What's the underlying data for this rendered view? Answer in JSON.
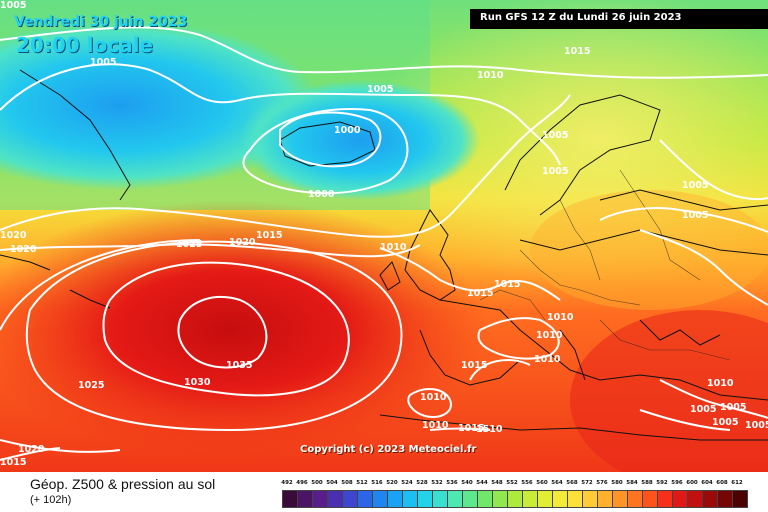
{
  "header": {
    "date": "Vendredi 30 juin 2023",
    "time": "20:00 locale",
    "run": "Run GFS 12 Z du Lundi 26 juin 2023"
  },
  "copyright": "Copyright (c) 2023 Meteociel.fr",
  "footer": {
    "title": "Géop. Z500 & pression au sol",
    "lead": "(+ 102h)"
  },
  "legend": {
    "ticks": [
      "492",
      "496",
      "500",
      "504",
      "508",
      "512",
      "516",
      "520",
      "524",
      "528",
      "532",
      "536",
      "540",
      "544",
      "548",
      "552",
      "556",
      "560",
      "564",
      "568",
      "572",
      "576",
      "580",
      "584",
      "588",
      "592",
      "596",
      "600",
      "604",
      "608",
      "612"
    ],
    "colors": [
      "#3a0a3a",
      "#4b1466",
      "#5a1e8c",
      "#4a2fb0",
      "#3c46d0",
      "#2b66e6",
      "#1f86f0",
      "#1aa3f5",
      "#1bbff2",
      "#24d3e8",
      "#39e0d0",
      "#4fe8b2",
      "#5ee88e",
      "#72e86a",
      "#8fe84e",
      "#aeea3e",
      "#c9ec36",
      "#e2ee36",
      "#f4ea38",
      "#fde03a",
      "#ffcb36",
      "#ffb12e",
      "#ff9426",
      "#ff7420",
      "#ff531c",
      "#f6301a",
      "#e01818",
      "#c21010",
      "#9a0a0a",
      "#740606",
      "#4a0202"
    ]
  },
  "map": {
    "isobar_labels": [
      "1005",
      "1010",
      "1015",
      "1020",
      "1025",
      "1030",
      "1035",
      "1000",
      "1010",
      "1015",
      "1510"
    ],
    "color_bands": {
      "low_centre": "#1fa6ee",
      "subtropical_high": "#e8201a",
      "polar": "#6ee27a"
    }
  }
}
